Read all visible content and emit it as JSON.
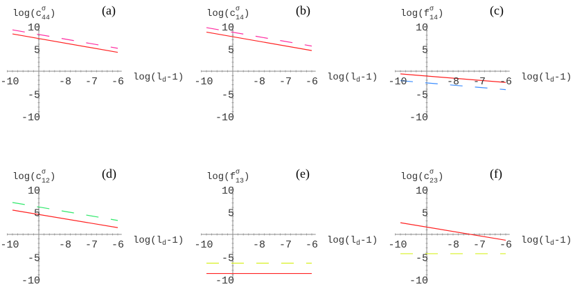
{
  "chart_data": [
    {
      "type": "line",
      "panel": "(a)",
      "ylabel": {
        "pre": "log(c",
        "sup": "σ",
        "sub": "44",
        "post": ")"
      },
      "xlabel": {
        "pre": "log(l",
        "sub": "d",
        "post": "-1)"
      },
      "xlim": [
        -10,
        -6
      ],
      "ylim": [
        -10,
        10
      ],
      "xticks": [
        "-10",
        "-8",
        "-7",
        "-6"
      ],
      "yticks": [
        "10",
        "5",
        "-5",
        "-10"
      ],
      "series": [
        {
          "style": "solid",
          "color": "#ff2020",
          "x": [
            -10,
            -6
          ],
          "y": [
            8.3,
            4.2
          ]
        },
        {
          "style": "dashed",
          "color": "#ff2aa0",
          "x": [
            -10,
            -6
          ],
          "y": [
            9.2,
            5.1
          ]
        }
      ]
    },
    {
      "type": "line",
      "panel": "(b)",
      "ylabel": {
        "pre": "log(c",
        "sup": "σ",
        "sub": "14",
        "post": ")"
      },
      "xlabel": {
        "pre": "log(l",
        "sub": "d",
        "post": "-1)"
      },
      "xlim": [
        -10,
        -6
      ],
      "ylim": [
        -10,
        10
      ],
      "xticks": [
        "-10",
        "-8",
        "-7",
        "-6"
      ],
      "yticks": [
        "10",
        "5",
        "-5",
        "-10"
      ],
      "series": [
        {
          "style": "solid",
          "color": "#ff2020",
          "x": [
            -10,
            -6
          ],
          "y": [
            8.7,
            4.6
          ]
        },
        {
          "style": "dashed",
          "color": "#ff2aa0",
          "x": [
            -10,
            -6
          ],
          "y": [
            9.7,
            5.6
          ]
        }
      ]
    },
    {
      "type": "line",
      "panel": "(c)",
      "ylabel": {
        "pre": "log(f",
        "sup": "σ",
        "sub": "14",
        "post": ")"
      },
      "xlabel": {
        "pre": "log(l",
        "sub": "d",
        "post": "-1)"
      },
      "xlim": [
        -10,
        -6
      ],
      "ylim": [
        -10,
        10
      ],
      "xticks": [
        "-10",
        "-8",
        "-7",
        "-6"
      ],
      "yticks": [
        "10",
        "5",
        "-5",
        "-10"
      ],
      "series": [
        {
          "style": "solid",
          "color": "#ff2020",
          "x": [
            -10,
            -6
          ],
          "y": [
            -0.6,
            -2.5
          ]
        },
        {
          "style": "dashed",
          "color": "#3a8cff",
          "x": [
            -10,
            -6
          ],
          "y": [
            -2.1,
            -4.1
          ]
        }
      ]
    },
    {
      "type": "line",
      "panel": "(d)",
      "ylabel": {
        "pre": "log(c",
        "sup": "σ",
        "sub": "12",
        "post": ")"
      },
      "xlabel": {
        "pre": "log(l",
        "sub": "d",
        "post": "-1)"
      },
      "xlim": [
        -10,
        -6
      ],
      "ylim": [
        -10,
        10
      ],
      "xticks": [
        "-10",
        "-8",
        "-7",
        "-6"
      ],
      "yticks": [
        "10",
        "5",
        "-5",
        "-10"
      ],
      "series": [
        {
          "style": "solid",
          "color": "#ff2020",
          "x": [
            -10,
            -6
          ],
          "y": [
            5.4,
            1.5
          ]
        },
        {
          "style": "dashed",
          "color": "#2ee86a",
          "x": [
            -10,
            -6
          ],
          "y": [
            7.1,
            3.1
          ]
        }
      ]
    },
    {
      "type": "line",
      "panel": "(e)",
      "ylabel": {
        "pre": "log(f",
        "sup": "σ",
        "sub": "13",
        "post": ")"
      },
      "xlabel": {
        "pre": "log(l",
        "sub": "d",
        "post": "-1)"
      },
      "xlim": [
        -10,
        -6
      ],
      "ylim": [
        -10,
        10
      ],
      "xticks": [
        "-10",
        "-8",
        "-7",
        "-6"
      ],
      "yticks": [
        "10",
        "5",
        "-5",
        "-10"
      ],
      "series": [
        {
          "style": "solid",
          "color": "#ff2020",
          "x": [
            -10,
            -6
          ],
          "y": [
            -8.7,
            -8.7
          ]
        },
        {
          "style": "dashed",
          "color": "#d8f020",
          "x": [
            -10,
            -6
          ],
          "y": [
            -6.4,
            -6.4
          ]
        }
      ]
    },
    {
      "type": "line",
      "panel": "(f)",
      "ylabel": {
        "pre": "log(c",
        "sup": "σ",
        "sub": "23",
        "post": ")"
      },
      "xlabel": {
        "pre": "log(l",
        "sub": "d",
        "post": "-1)"
      },
      "xlim": [
        -10,
        -6
      ],
      "ylim": [
        -10,
        10
      ],
      "xticks": [
        "-10",
        "-8",
        "-7",
        "-6"
      ],
      "yticks": [
        "10",
        "5",
        "-5",
        "-10"
      ],
      "series": [
        {
          "style": "solid",
          "color": "#ff2020",
          "x": [
            -10,
            -6
          ],
          "y": [
            2.6,
            -1.3
          ]
        },
        {
          "style": "dashed",
          "color": "#d8f020",
          "x": [
            -10,
            -6
          ],
          "y": [
            -4.3,
            -4.3
          ]
        }
      ]
    }
  ]
}
